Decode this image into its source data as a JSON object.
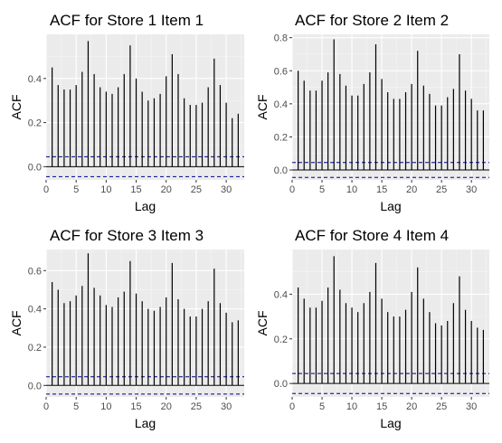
{
  "chart_data": [
    {
      "type": "bar",
      "title": "ACF for Store 1 Item 1",
      "xlabel": "Lag",
      "ylabel": "ACF",
      "xlim": [
        0,
        33
      ],
      "ylim": [
        -0.06,
        0.6
      ],
      "xticks": [
        0,
        5,
        10,
        15,
        20,
        25,
        30
      ],
      "yticks": [
        0.0,
        0.2,
        0.4
      ],
      "ytick_labels": [
        "0.0",
        "0.2",
        "0.4"
      ],
      "conf_limit": 0.045,
      "lags": [
        1,
        2,
        3,
        4,
        5,
        6,
        7,
        8,
        9,
        10,
        11,
        12,
        13,
        14,
        15,
        16,
        17,
        18,
        19,
        20,
        21,
        22,
        23,
        24,
        25,
        26,
        27,
        28,
        29,
        30,
        31,
        32
      ],
      "values": [
        0.45,
        0.37,
        0.35,
        0.35,
        0.37,
        0.43,
        0.57,
        0.42,
        0.36,
        0.34,
        0.33,
        0.36,
        0.42,
        0.55,
        0.4,
        0.34,
        0.3,
        0.31,
        0.33,
        0.41,
        0.51,
        0.42,
        0.31,
        0.28,
        0.28,
        0.29,
        0.36,
        0.49,
        0.37,
        0.29,
        0.22,
        0.24
      ]
    },
    {
      "type": "bar",
      "title": "ACF for Store 2 Item 2",
      "xlabel": "Lag",
      "ylabel": "ACF",
      "xlim": [
        0,
        33
      ],
      "ylim": [
        -0.06,
        0.82
      ],
      "xticks": [
        0,
        5,
        10,
        15,
        20,
        25,
        30
      ],
      "yticks": [
        0.0,
        0.2,
        0.4,
        0.6,
        0.8
      ],
      "ytick_labels": [
        "0.0",
        "0.2",
        "0.4",
        "0.6",
        "0.8"
      ],
      "conf_limit": 0.045,
      "lags": [
        1,
        2,
        3,
        4,
        5,
        6,
        7,
        8,
        9,
        10,
        11,
        12,
        13,
        14,
        15,
        16,
        17,
        18,
        19,
        20,
        21,
        22,
        23,
        24,
        25,
        26,
        27,
        28,
        29,
        30,
        31,
        32
      ],
      "values": [
        0.6,
        0.54,
        0.48,
        0.48,
        0.54,
        0.59,
        0.79,
        0.58,
        0.51,
        0.45,
        0.45,
        0.52,
        0.59,
        0.76,
        0.55,
        0.47,
        0.43,
        0.43,
        0.47,
        0.52,
        0.72,
        0.51,
        0.46,
        0.39,
        0.39,
        0.44,
        0.49,
        0.7,
        0.48,
        0.43,
        0.36,
        0.36
      ]
    },
    {
      "type": "bar",
      "title": "ACF for Store 3 Item 3",
      "xlabel": "Lag",
      "ylabel": "ACF",
      "xlim": [
        0,
        33
      ],
      "ylim": [
        -0.06,
        0.71
      ],
      "xticks": [
        0,
        5,
        10,
        15,
        20,
        25,
        30
      ],
      "yticks": [
        0.0,
        0.2,
        0.4,
        0.6
      ],
      "ytick_labels": [
        "0.0",
        "0.2",
        "0.4",
        "0.6"
      ],
      "conf_limit": 0.045,
      "lags": [
        1,
        2,
        3,
        4,
        5,
        6,
        7,
        8,
        9,
        10,
        11,
        12,
        13,
        14,
        15,
        16,
        17,
        18,
        19,
        20,
        21,
        22,
        23,
        24,
        25,
        26,
        27,
        28,
        29,
        30,
        31,
        32
      ],
      "values": [
        0.54,
        0.5,
        0.43,
        0.44,
        0.47,
        0.52,
        0.69,
        0.51,
        0.47,
        0.42,
        0.41,
        0.46,
        0.49,
        0.65,
        0.48,
        0.44,
        0.4,
        0.39,
        0.41,
        0.46,
        0.64,
        0.45,
        0.4,
        0.36,
        0.36,
        0.4,
        0.44,
        0.61,
        0.43,
        0.38,
        0.33,
        0.34
      ]
    },
    {
      "type": "bar",
      "title": "ACF for Store 4 Item 4",
      "xlabel": "Lag",
      "ylabel": "ACF",
      "xlim": [
        0,
        33
      ],
      "ylim": [
        -0.06,
        0.6
      ],
      "xticks": [
        0,
        5,
        10,
        15,
        20,
        25,
        30
      ],
      "yticks": [
        0.0,
        0.2,
        0.4
      ],
      "ytick_labels": [
        "0.0",
        "0.2",
        "0.4"
      ],
      "conf_limit": 0.045,
      "lags": [
        1,
        2,
        3,
        4,
        5,
        6,
        7,
        8,
        9,
        10,
        11,
        12,
        13,
        14,
        15,
        16,
        17,
        18,
        19,
        20,
        21,
        22,
        23,
        24,
        25,
        26,
        27,
        28,
        29,
        30,
        31,
        32
      ],
      "values": [
        0.43,
        0.38,
        0.34,
        0.34,
        0.37,
        0.43,
        0.57,
        0.42,
        0.36,
        0.34,
        0.32,
        0.36,
        0.41,
        0.54,
        0.38,
        0.32,
        0.3,
        0.3,
        0.33,
        0.41,
        0.52,
        0.38,
        0.32,
        0.27,
        0.26,
        0.28,
        0.36,
        0.48,
        0.33,
        0.28,
        0.25,
        0.24
      ]
    }
  ],
  "colors": {
    "panel_background": "#ebebeb",
    "grid_major": "#ffffff",
    "grid_minor": "#f5f5f5",
    "bar": "#000000",
    "zero_line": "#000000",
    "confidence_line": "#00008b",
    "tick_label": "#4d4d4d",
    "tick_mark": "#333333"
  }
}
